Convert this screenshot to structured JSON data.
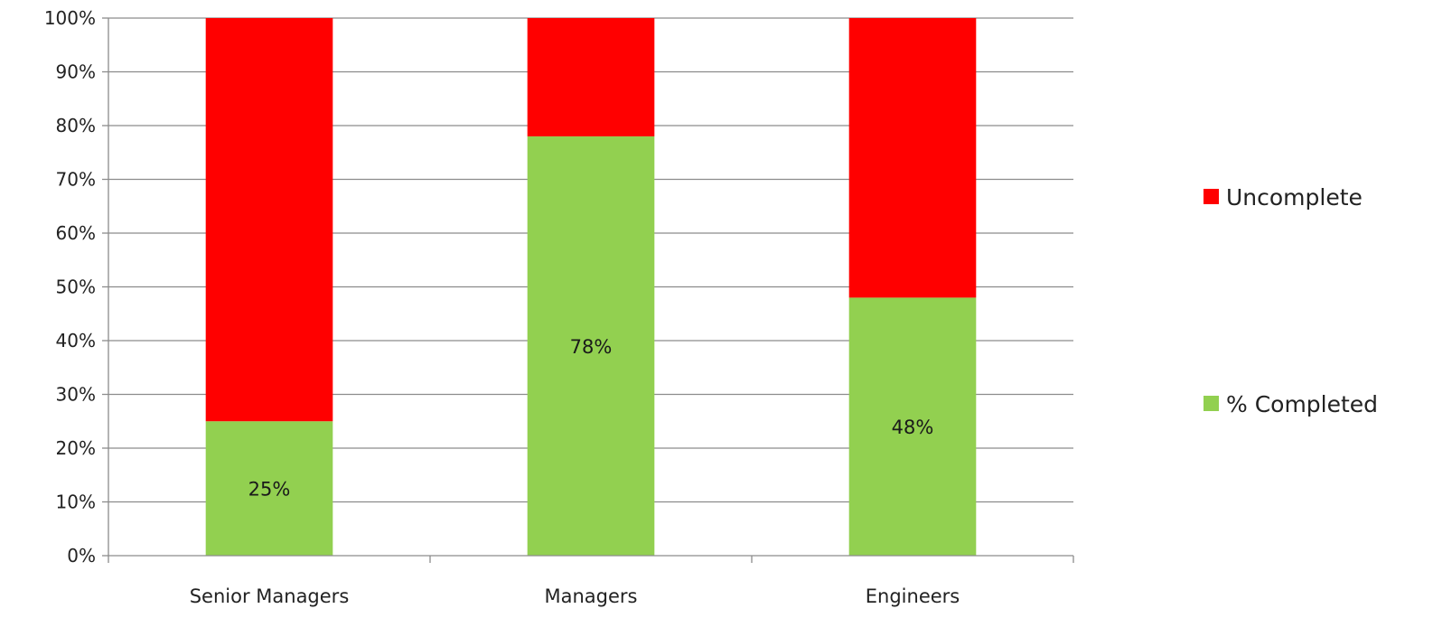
{
  "chart_data": {
    "type": "bar",
    "stacked": true,
    "percent_stacked": true,
    "title": "",
    "xlabel": "",
    "ylabel": "",
    "categories": [
      "Senior Managers",
      "Managers",
      "Engineers"
    ],
    "series": [
      {
        "name": "% Completed",
        "values": [
          25,
          78,
          48
        ],
        "color": "#92d050",
        "data_labels": [
          "25%",
          "78%",
          "48%"
        ]
      },
      {
        "name": "Uncomplete",
        "values": [
          75,
          22,
          52
        ],
        "color": "#ff0000"
      }
    ],
    "ylim": [
      0,
      100
    ],
    "yticks": [
      0,
      10,
      20,
      30,
      40,
      50,
      60,
      70,
      80,
      90,
      100
    ],
    "ytick_labels": [
      "0%",
      "10%",
      "20%",
      "30%",
      "40%",
      "50%",
      "60%",
      "70%",
      "80%",
      "90%",
      "100%"
    ],
    "grid": true,
    "legend": {
      "position": "right",
      "entries": [
        "Uncomplete",
        "% Completed"
      ]
    }
  }
}
